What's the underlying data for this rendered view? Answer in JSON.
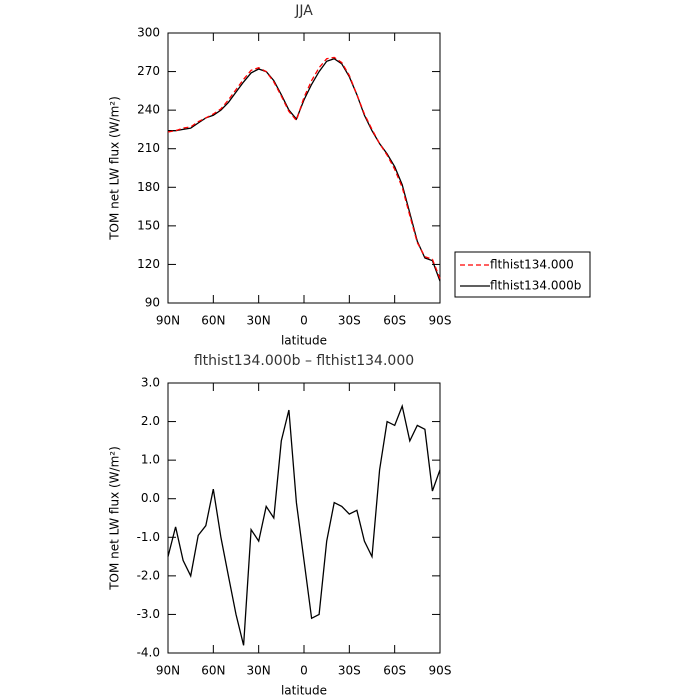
{
  "chart_data": [
    {
      "type": "line",
      "title": "JJA",
      "xlabel": "latitude",
      "ylabel": "TOM net LW flux (W/m²)",
      "x": [
        90,
        85,
        80,
        75,
        70,
        65,
        60,
        55,
        50,
        45,
        40,
        35,
        30,
        25,
        20,
        15,
        10,
        5,
        0,
        -5,
        -10,
        -15,
        -20,
        -25,
        -30,
        -35,
        -40,
        -45,
        -50,
        -55,
        -60,
        -65,
        -70,
        -75,
        -80,
        -85,
        -90
      ],
      "series": [
        {
          "name": "flthist134.000",
          "color": "#ff0000",
          "style": "dashed",
          "values": [
            223,
            224,
            226,
            227,
            231,
            234,
            237,
            241,
            248,
            256,
            264,
            271,
            273,
            270,
            262,
            251,
            239,
            232,
            250,
            263,
            273,
            280,
            281,
            277,
            267,
            252,
            237,
            225,
            214,
            205,
            194,
            180,
            158,
            137,
            126,
            124,
            109
          ]
        },
        {
          "name": "flthist134.000b",
          "color": "#000000",
          "style": "solid",
          "values": [
            224,
            224,
            225,
            226,
            230,
            234,
            236,
            240,
            246,
            254,
            262,
            269,
            272,
            270,
            263,
            252,
            240,
            233,
            248,
            260,
            270,
            278,
            280,
            276,
            266,
            252,
            236,
            224,
            214,
            206,
            196,
            182,
            160,
            138,
            125,
            123,
            107
          ]
        }
      ],
      "xlim": [
        90,
        -90
      ],
      "xticks": [
        {
          "value": 90,
          "label": "90N"
        },
        {
          "value": 60,
          "label": "60N"
        },
        {
          "value": 30,
          "label": "30N"
        },
        0,
        {
          "value": -30,
          "label": "30S"
        },
        {
          "value": -60,
          "label": "60S"
        },
        {
          "value": -90,
          "label": "90S"
        }
      ],
      "ylim": [
        90,
        300
      ],
      "yticks": [
        90,
        120,
        150,
        180,
        210,
        240,
        270,
        300
      ],
      "legend": "right"
    },
    {
      "type": "line",
      "title": "flthist134.000b – flthist134.000",
      "xlabel": "latitude",
      "ylabel": "TOM net LW flux (W/m²)",
      "x": [
        90,
        85,
        80,
        75,
        70,
        65,
        60,
        55,
        50,
        45,
        40,
        35,
        30,
        25,
        20,
        15,
        10,
        5,
        0,
        -5,
        -10,
        -15,
        -20,
        -25,
        -30,
        -35,
        -40,
        -45,
        -50,
        -55,
        -60,
        -65,
        -70,
        -75,
        -80,
        -85,
        -90
      ],
      "values": [
        -1.5,
        -0.73,
        -1.6,
        -2.0,
        -0.95,
        -0.7,
        0.25,
        -1.0,
        -2.0,
        -3.0,
        -3.8,
        -0.8,
        -1.1,
        -0.2,
        -0.5,
        1.5,
        2.3,
        -0.1,
        -1.6,
        -3.1,
        -3.0,
        -1.1,
        -0.1,
        -0.2,
        -0.4,
        -0.3,
        -1.1,
        -1.5,
        0.75,
        2.0,
        1.9,
        2.4,
        1.5,
        1.9,
        1.8,
        0.2,
        0.75
      ],
      "color": "#000000",
      "xlim": [
        90,
        -90
      ],
      "xticks": [
        {
          "value": 90,
          "label": "90N"
        },
        {
          "value": 60,
          "label": "60N"
        },
        {
          "value": 30,
          "label": "30N"
        },
        0,
        {
          "value": -30,
          "label": "30S"
        },
        {
          "value": -60,
          "label": "60S"
        },
        {
          "value": -90,
          "label": "90S"
        }
      ],
      "ylim": [
        -4,
        3
      ],
      "yticks": [
        {
          "value": -4,
          "label": "-4.0"
        },
        {
          "value": -3,
          "label": "-3.0"
        },
        {
          "value": -2,
          "label": "-2.0"
        },
        {
          "value": -1,
          "label": "-1.0"
        },
        {
          "value": 0,
          "label": "0.0"
        },
        {
          "value": 1,
          "label": "1.0"
        },
        {
          "value": 2,
          "label": "2.0"
        },
        {
          "value": 3,
          "label": "3.0"
        }
      ]
    }
  ]
}
